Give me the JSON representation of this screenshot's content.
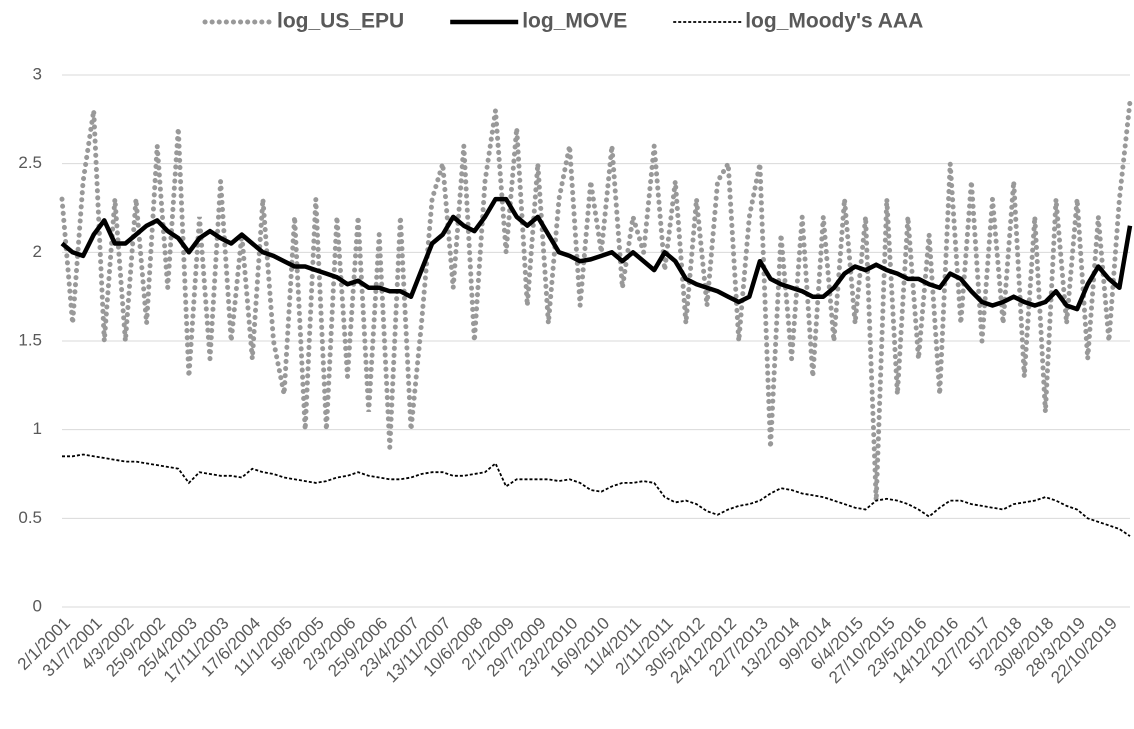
{
  "chart_data": {
    "type": "line",
    "categories": [
      "2/1/2001",
      null,
      null,
      "31/7/2001",
      null,
      null,
      "4/3/2002",
      null,
      null,
      "25/9/2002",
      null,
      null,
      "25/4/2003",
      null,
      null,
      "17/11/2003",
      null,
      null,
      "17/6/2004",
      null,
      null,
      "11/1/2005",
      null,
      null,
      "5/8/2005",
      null,
      null,
      "2/3/2006",
      null,
      null,
      "25/9/2006",
      null,
      null,
      "23/4/2007",
      null,
      null,
      "13/11/2007",
      null,
      null,
      "10/6/2008",
      null,
      null,
      "2/1/2009",
      null,
      null,
      "29/7/2009",
      null,
      null,
      "23/2/2010",
      null,
      null,
      "16/9/2010",
      null,
      null,
      "11/4/2011",
      null,
      null,
      "2/11/2011",
      null,
      null,
      "30/5/2012",
      null,
      null,
      "24/12/2012",
      null,
      null,
      "22/7/2013",
      null,
      null,
      "13/2/2014",
      null,
      null,
      "9/9/2014",
      null,
      null,
      "6/4/2015",
      null,
      null,
      "27/10/2015",
      null,
      null,
      "23/5/2016",
      null,
      null,
      "14/12/2016",
      null,
      null,
      "12/7/2017",
      null,
      null,
      "5/2/2018",
      null,
      null,
      "30/8/2018",
      null,
      null,
      "28/3/2019",
      null,
      null,
      "22/10/2019",
      null,
      null
    ],
    "series": [
      {
        "name": "log_US_EPU",
        "color": "#999999",
        "style": "dotted",
        "values": [
          2.3,
          1.6,
          2.4,
          2.8,
          1.5,
          2.3,
          1.5,
          2.3,
          1.6,
          2.6,
          1.8,
          2.7,
          1.3,
          2.2,
          1.4,
          2.4,
          1.5,
          2.1,
          1.4,
          2.3,
          1.5,
          1.2,
          2.2,
          1.0,
          2.3,
          1.0,
          2.2,
          1.3,
          2.2,
          1.1,
          2.1,
          0.9,
          2.2,
          1.0,
          1.6,
          2.3,
          2.5,
          1.8,
          2.6,
          1.5,
          2.4,
          2.8,
          2.0,
          2.7,
          1.7,
          2.5,
          1.6,
          2.3,
          2.6,
          1.7,
          2.4,
          2.0,
          2.6,
          1.8,
          2.2,
          2.0,
          2.6,
          1.9,
          2.4,
          1.6,
          2.3,
          1.7,
          2.4,
          2.5,
          1.5,
          2.2,
          2.5,
          0.9,
          2.1,
          1.4,
          2.2,
          1.3,
          2.2,
          1.5,
          2.3,
          1.6,
          2.2,
          0.6,
          2.3,
          1.2,
          2.2,
          1.4,
          2.1,
          1.2,
          2.5,
          1.6,
          2.4,
          1.5,
          2.3,
          1.6,
          2.4,
          1.3,
          2.2,
          1.1,
          2.3,
          1.6,
          2.3,
          1.4,
          2.2,
          1.5,
          2.3,
          2.85
        ]
      },
      {
        "name": "log_MOVE",
        "color": "#000000",
        "style": "solid",
        "values": [
          2.05,
          2.0,
          1.98,
          2.1,
          2.18,
          2.05,
          2.05,
          2.1,
          2.15,
          2.18,
          2.12,
          2.08,
          2.0,
          2.08,
          2.12,
          2.08,
          2.05,
          2.1,
          2.05,
          2.0,
          1.98,
          1.95,
          1.92,
          1.92,
          1.9,
          1.88,
          1.86,
          1.82,
          1.84,
          1.8,
          1.8,
          1.78,
          1.78,
          1.75,
          1.9,
          2.05,
          2.1,
          2.2,
          2.15,
          2.12,
          2.2,
          2.3,
          2.3,
          2.2,
          2.15,
          2.2,
          2.1,
          2.0,
          1.98,
          1.95,
          1.96,
          1.98,
          2.0,
          1.95,
          2.0,
          1.95,
          1.9,
          2.0,
          1.95,
          1.85,
          1.82,
          1.8,
          1.78,
          1.75,
          1.72,
          1.75,
          1.95,
          1.85,
          1.82,
          1.8,
          1.78,
          1.75,
          1.75,
          1.8,
          1.88,
          1.92,
          1.9,
          1.93,
          1.9,
          1.88,
          1.85,
          1.85,
          1.82,
          1.8,
          1.88,
          1.85,
          1.78,
          1.72,
          1.7,
          1.72,
          1.75,
          1.72,
          1.7,
          1.72,
          1.78,
          1.7,
          1.68,
          1.82,
          1.92,
          1.85,
          1.8,
          2.15
        ]
      },
      {
        "name": "log_Moody's AAA",
        "color": "#000000",
        "style": "dashed",
        "values": [
          0.85,
          0.85,
          0.86,
          0.85,
          0.84,
          0.83,
          0.82,
          0.82,
          0.81,
          0.8,
          0.79,
          0.78,
          0.7,
          0.76,
          0.75,
          0.74,
          0.74,
          0.73,
          0.78,
          0.76,
          0.75,
          0.73,
          0.72,
          0.71,
          0.7,
          0.71,
          0.73,
          0.74,
          0.76,
          0.74,
          0.73,
          0.72,
          0.72,
          0.73,
          0.75,
          0.76,
          0.76,
          0.74,
          0.74,
          0.75,
          0.76,
          0.81,
          0.68,
          0.72,
          0.72,
          0.72,
          0.72,
          0.71,
          0.72,
          0.7,
          0.66,
          0.65,
          0.68,
          0.7,
          0.7,
          0.71,
          0.7,
          0.62,
          0.59,
          0.6,
          0.58,
          0.54,
          0.52,
          0.55,
          0.57,
          0.58,
          0.6,
          0.64,
          0.67,
          0.66,
          0.64,
          0.63,
          0.62,
          0.6,
          0.58,
          0.56,
          0.55,
          0.6,
          0.61,
          0.6,
          0.58,
          0.55,
          0.51,
          0.56,
          0.6,
          0.6,
          0.58,
          0.57,
          0.56,
          0.55,
          0.58,
          0.59,
          0.6,
          0.62,
          0.6,
          0.57,
          0.55,
          0.5,
          0.48,
          0.46,
          0.44,
          0.4
        ]
      }
    ],
    "ylim": [
      0,
      3
    ],
    "yticks": [
      0,
      0.5,
      1,
      1.5,
      2,
      2.5,
      3
    ],
    "grid": true,
    "legend": "top"
  }
}
